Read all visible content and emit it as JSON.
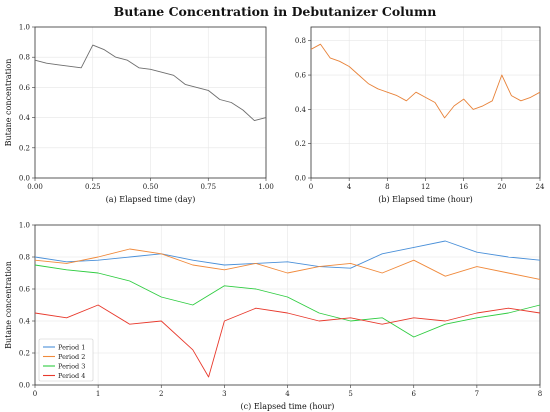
{
  "figure_title": "Butane Concentration in Debutanizer Column",
  "colors": {
    "panel_a": "#6e6e6e",
    "panel_b": "#e8833a",
    "period_1": "#4a90d9",
    "period_2": "#f08a3c",
    "period_3": "#2ecc40",
    "period_4": "#e8392c"
  },
  "chart_data": [
    {
      "type": "line",
      "panel": "a",
      "xlabel": "(a) Elapsed time (day)",
      "ylabel": "Butane concentration",
      "xlim": [
        0,
        1
      ],
      "ylim": [
        0,
        1
      ],
      "xticks": [
        "0.00",
        "0.25",
        "0.50",
        "0.75",
        "1.00"
      ],
      "yticks": [
        "0.0",
        "0.2",
        "0.4",
        "0.6",
        "0.8",
        "1.0"
      ],
      "grid": true,
      "series": [
        {
          "x": [
            0.0,
            0.05,
            0.1,
            0.15,
            0.2,
            0.25,
            0.3,
            0.35,
            0.4,
            0.45,
            0.5,
            0.55,
            0.6,
            0.65,
            0.7,
            0.75,
            0.8,
            0.85,
            0.9,
            0.95,
            1.0
          ],
          "y": [
            0.78,
            0.76,
            0.75,
            0.74,
            0.73,
            0.88,
            0.85,
            0.8,
            0.78,
            0.73,
            0.72,
            0.7,
            0.68,
            0.62,
            0.6,
            0.58,
            0.52,
            0.5,
            0.45,
            0.38,
            0.4
          ]
        }
      ]
    },
    {
      "type": "line",
      "panel": "b",
      "xlabel": "(b) Elapsed time (hour)",
      "ylabel": "",
      "xlim": [
        0,
        24
      ],
      "ylim": [
        0,
        0.88
      ],
      "xticks": [
        "0",
        "4",
        "8",
        "12",
        "16",
        "20",
        "24"
      ],
      "yticks": [
        "0.0",
        "0.2",
        "0.4",
        "0.6",
        "0.8"
      ],
      "grid": true,
      "series": [
        {
          "x": [
            0,
            1,
            2,
            3,
            4,
            5,
            6,
            7,
            8,
            9,
            10,
            11,
            12,
            13,
            14,
            15,
            16,
            17,
            18,
            19,
            20,
            21,
            22,
            23,
            24
          ],
          "y": [
            0.75,
            0.78,
            0.7,
            0.68,
            0.65,
            0.6,
            0.55,
            0.52,
            0.5,
            0.48,
            0.45,
            0.5,
            0.47,
            0.44,
            0.35,
            0.42,
            0.46,
            0.4,
            0.42,
            0.45,
            0.6,
            0.48,
            0.45,
            0.47,
            0.5
          ]
        }
      ]
    },
    {
      "type": "line",
      "panel": "c",
      "xlabel": "(c) Elapsed time (hour)",
      "ylabel": "Butane concentration",
      "xlim": [
        0,
        8
      ],
      "ylim": [
        0,
        1
      ],
      "xticks": [
        "0",
        "1",
        "2",
        "3",
        "4",
        "5",
        "6",
        "7",
        "8"
      ],
      "yticks": [
        "0.0",
        "0.2",
        "0.4",
        "0.6",
        "0.8",
        "1.0"
      ],
      "grid": true,
      "legend": "lower-left",
      "series": [
        {
          "name": "Period 1",
          "x": [
            0,
            0.5,
            1,
            1.5,
            2,
            2.5,
            3,
            3.5,
            4,
            4.5,
            5,
            5.5,
            6,
            6.5,
            7,
            7.5,
            8
          ],
          "y": [
            0.8,
            0.77,
            0.78,
            0.8,
            0.82,
            0.78,
            0.75,
            0.76,
            0.77,
            0.74,
            0.73,
            0.82,
            0.86,
            0.9,
            0.83,
            0.8,
            0.78
          ]
        },
        {
          "name": "Period 2",
          "x": [
            0,
            0.5,
            1,
            1.5,
            2,
            2.5,
            3,
            3.5,
            4,
            4.5,
            5,
            5.5,
            6,
            6.5,
            7,
            7.5,
            8
          ],
          "y": [
            0.78,
            0.76,
            0.8,
            0.85,
            0.82,
            0.75,
            0.72,
            0.76,
            0.7,
            0.74,
            0.76,
            0.7,
            0.78,
            0.68,
            0.74,
            0.7,
            0.66
          ]
        },
        {
          "name": "Period 3",
          "x": [
            0,
            0.5,
            1,
            1.5,
            2,
            2.5,
            3,
            3.5,
            4,
            4.5,
            5,
            5.5,
            6,
            6.5,
            7,
            7.5,
            8
          ],
          "y": [
            0.75,
            0.72,
            0.7,
            0.65,
            0.55,
            0.5,
            0.62,
            0.6,
            0.55,
            0.45,
            0.4,
            0.42,
            0.3,
            0.38,
            0.42,
            0.45,
            0.5
          ]
        },
        {
          "name": "Period 4",
          "x": [
            0,
            0.5,
            1,
            1.5,
            2,
            2.5,
            2.75,
            3,
            3.5,
            4,
            4.5,
            5,
            5.5,
            6,
            6.5,
            7,
            7.5,
            8
          ],
          "y": [
            0.45,
            0.42,
            0.5,
            0.38,
            0.4,
            0.22,
            0.05,
            0.4,
            0.48,
            0.45,
            0.4,
            0.42,
            0.38,
            0.42,
            0.4,
            0.45,
            0.48,
            0.45
          ]
        }
      ]
    }
  ]
}
